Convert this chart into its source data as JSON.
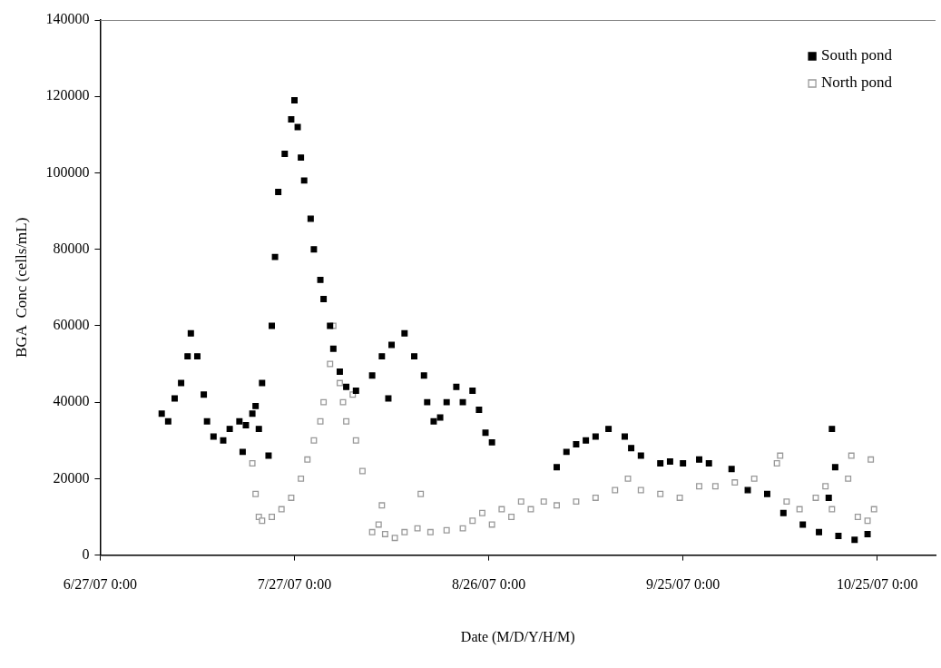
{
  "chart_data": {
    "type": "scatter",
    "xlabel": "Date (M/D/Y/H/M)",
    "ylabel": "BGA  Conc (cells/mL)",
    "marker": "square",
    "legend": "top right",
    "grid": false,
    "xlim": [
      "2007-06-27",
      "2007-11-03"
    ],
    "xticks": [
      {
        "value": "2007-06-27",
        "label": "6/27/07 0:00"
      },
      {
        "value": "2007-07-27",
        "label": "7/27/07 0:00"
      },
      {
        "value": "2007-08-26",
        "label": "8/26/07 0:00"
      },
      {
        "value": "2007-09-25",
        "label": "9/25/07 0:00"
      },
      {
        "value": "2007-10-25",
        "label": "10/25/07 0:00"
      }
    ],
    "ylim": [
      0,
      140000
    ],
    "yticks": [
      0,
      20000,
      40000,
      60000,
      80000,
      100000,
      120000,
      140000
    ],
    "series": [
      {
        "name": "South pond",
        "color": "#000000",
        "x": [
          "2007-07-06T12:00",
          "2007-07-07T12:00",
          "2007-07-08T12:00",
          "2007-07-09T12:00",
          "2007-07-10T12:00",
          "2007-07-11",
          "2007-07-12",
          "2007-07-13",
          "2007-07-13T12:00",
          "2007-07-14T12:00",
          "2007-07-16",
          "2007-07-17",
          "2007-07-18T12:00",
          "2007-07-19",
          "2007-07-19T12:00",
          "2007-07-20T12:00",
          "2007-07-21",
          "2007-07-21T12:00",
          "2007-07-22",
          "2007-07-23",
          "2007-07-23T12:00",
          "2007-07-24",
          "2007-07-24T12:00",
          "2007-07-25T12:00",
          "2007-07-26T12:00",
          "2007-07-27",
          "2007-07-27T12:00",
          "2007-07-28",
          "2007-07-28T12:00",
          "2007-07-29T12:00",
          "2007-07-30",
          "2007-07-31",
          "2007-07-31T12:00",
          "2007-08-01T12:00",
          "2007-08-02",
          "2007-08-03",
          "2007-08-04",
          "2007-08-05T12:00",
          "2007-08-08",
          "2007-08-09T12:00",
          "2007-08-10T12:00",
          "2007-08-11",
          "2007-08-13",
          "2007-08-14T12:00",
          "2007-08-16",
          "2007-08-16T12:00",
          "2007-08-17T12:00",
          "2007-08-18T12:00",
          "2007-08-19T12:00",
          "2007-08-21",
          "2007-08-22",
          "2007-08-23T12:00",
          "2007-08-24T12:00",
          "2007-08-25T12:00",
          "2007-08-26T12:00",
          "2007-09-05T12:00",
          "2007-09-07",
          "2007-09-08T12:00",
          "2007-09-10",
          "2007-09-11T12:00",
          "2007-09-13T12:00",
          "2007-09-16",
          "2007-09-17",
          "2007-09-18T12:00",
          "2007-09-21T12:00",
          "2007-09-23",
          "2007-09-25",
          "2007-09-27T12:00",
          "2007-09-29",
          "2007-10-02T12:00",
          "2007-10-05",
          "2007-10-08",
          "2007-10-10T12:00",
          "2007-10-13T12:00",
          "2007-10-16",
          "2007-10-17T12:00",
          "2007-10-18",
          "2007-10-18T12:00",
          "2007-10-19",
          "2007-10-21T12:00",
          "2007-10-23T12:00"
        ],
        "values": [
          37000,
          35000,
          41000,
          45000,
          52000,
          58000,
          52000,
          42000,
          35000,
          31000,
          30000,
          33000,
          35000,
          27000,
          34000,
          37000,
          39000,
          33000,
          45000,
          26000,
          60000,
          78000,
          95000,
          105000,
          114000,
          119000,
          112000,
          104000,
          98000,
          88000,
          80000,
          72000,
          67000,
          60000,
          54000,
          48000,
          44000,
          43000,
          47000,
          52000,
          41000,
          55000,
          58000,
          52000,
          47000,
          40000,
          35000,
          36000,
          40000,
          44000,
          40000,
          43000,
          38000,
          32000,
          29500,
          23000,
          27000,
          29000,
          30000,
          31000,
          33000,
          31000,
          28000,
          26000,
          24000,
          24500,
          24000,
          25000,
          24000,
          22500,
          17000,
          16000,
          11000,
          8000,
          6000,
          15000,
          33000,
          23000,
          5000,
          4000,
          5500
        ]
      },
      {
        "name": "North pond",
        "color": "#999999",
        "x": [
          "2007-07-20T12:00",
          "2007-07-21",
          "2007-07-21T12:00",
          "2007-07-22",
          "2007-07-23T12:00",
          "2007-07-25",
          "2007-07-26T12:00",
          "2007-07-28",
          "2007-07-29",
          "2007-07-30",
          "2007-07-31",
          "2007-07-31T12:00",
          "2007-08-01T12:00",
          "2007-08-02",
          "2007-08-03",
          "2007-08-03T12:00",
          "2007-08-04",
          "2007-08-05",
          "2007-08-05T12:00",
          "2007-08-06T12:00",
          "2007-08-08",
          "2007-08-09",
          "2007-08-09T12:00",
          "2007-08-10",
          "2007-08-11T12:00",
          "2007-08-13",
          "2007-08-15",
          "2007-08-15T12:00",
          "2007-08-17",
          "2007-08-19T12:00",
          "2007-08-22",
          "2007-08-23T12:00",
          "2007-08-25",
          "2007-08-26T12:00",
          "2007-08-28",
          "2007-08-29T12:00",
          "2007-08-31",
          "2007-09-01T12:00",
          "2007-09-03T12:00",
          "2007-09-05T12:00",
          "2007-09-08T12:00",
          "2007-09-11T12:00",
          "2007-09-14T12:00",
          "2007-09-16T12:00",
          "2007-09-18T12:00",
          "2007-09-21T12:00",
          "2007-09-24T12:00",
          "2007-09-27T12:00",
          "2007-09-30",
          "2007-10-03",
          "2007-10-06",
          "2007-10-09T12:00",
          "2007-10-10",
          "2007-10-11",
          "2007-10-13",
          "2007-10-15T12:00",
          "2007-10-17",
          "2007-10-18",
          "2007-10-20T12:00",
          "2007-10-21",
          "2007-10-22",
          "2007-10-23T12:00",
          "2007-10-24",
          "2007-10-24T12:00"
        ],
        "values": [
          24000,
          16000,
          10000,
          9000,
          10000,
          12000,
          15000,
          20000,
          25000,
          30000,
          35000,
          40000,
          50000,
          60000,
          45000,
          40000,
          35000,
          42000,
          30000,
          22000,
          6000,
          8000,
          13000,
          5500,
          4500,
          6000,
          7000,
          16000,
          6000,
          6500,
          7000,
          9000,
          11000,
          8000,
          12000,
          10000,
          14000,
          12000,
          14000,
          13000,
          14000,
          15000,
          17000,
          20000,
          17000,
          16000,
          15000,
          18000,
          18000,
          19000,
          20000,
          24000,
          26000,
          14000,
          12000,
          15000,
          18000,
          12000,
          20000,
          26000,
          10000,
          9000,
          25000,
          12000
        ]
      }
    ]
  }
}
